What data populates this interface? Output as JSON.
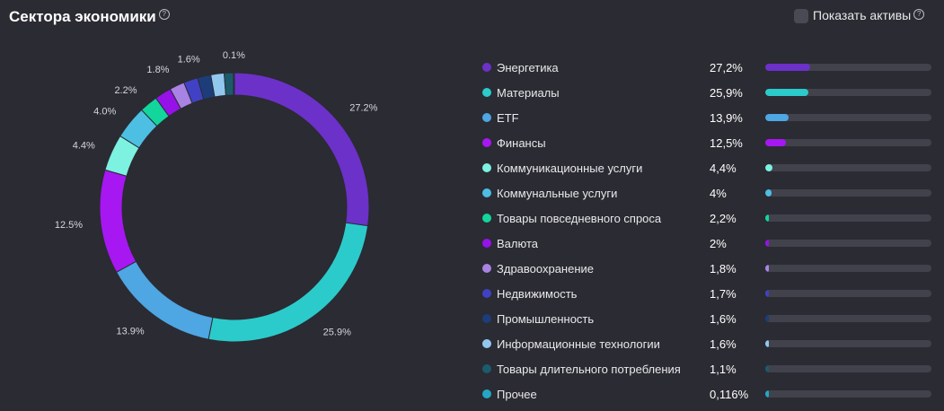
{
  "header": {
    "title": "Сектора экономики",
    "help": "?",
    "toggle_label": "Показать активы"
  },
  "chart_data": {
    "type": "pie",
    "title": "Сектора экономики",
    "slices": [
      {
        "name": "Энергетика",
        "value": 27.2,
        "label": "27.2%",
        "legend_pct": "27,2%",
        "color": "#6b31c9"
      },
      {
        "name": "Материалы",
        "value": 25.9,
        "label": "25.9%",
        "legend_pct": "25,9%",
        "color": "#2bcbcb"
      },
      {
        "name": "ETF",
        "value": 13.9,
        "label": "13.9%",
        "legend_pct": "13,9%",
        "color": "#4ea6e2"
      },
      {
        "name": "Финансы",
        "value": 12.5,
        "label": "12.5%",
        "legend_pct": "12,5%",
        "color": "#a717f2"
      },
      {
        "name": "Коммуникационные услуги",
        "value": 4.4,
        "label": "4.4%",
        "legend_pct": "4,4%",
        "color": "#7df2e0"
      },
      {
        "name": "Коммунальные услуги",
        "value": 4.0,
        "label": "4.0%",
        "legend_pct": "4%",
        "color": "#4cbfe3"
      },
      {
        "name": "Товары повседневного спроса",
        "value": 2.2,
        "label": "2.2%",
        "legend_pct": "2,2%",
        "color": "#12d69b"
      },
      {
        "name": "Валюта",
        "value": 2.0,
        "label": "",
        "legend_pct": "2%",
        "color": "#9612e8"
      },
      {
        "name": "Здравоохранение",
        "value": 1.8,
        "label": "1.8%",
        "legend_pct": "1,8%",
        "color": "#a883e3"
      },
      {
        "name": "Недвижимость",
        "value": 1.7,
        "label": "",
        "legend_pct": "1,7%",
        "color": "#4141c4"
      },
      {
        "name": "Промышленность",
        "value": 1.6,
        "label": "1.6%",
        "legend_pct": "1,6%",
        "color": "#1d3d7a"
      },
      {
        "name": "Информационные технологии",
        "value": 1.6,
        "label": "",
        "legend_pct": "1,6%",
        "color": "#92c8ee"
      },
      {
        "name": "Товары длительного потребления",
        "value": 1.1,
        "label": "",
        "legend_pct": "1,1%",
        "color": "#1b5b6c"
      },
      {
        "name": "Прочее",
        "value": 0.116,
        "label": "0.1%",
        "legend_pct": "0,116%",
        "color": "#25a6c4"
      }
    ]
  }
}
